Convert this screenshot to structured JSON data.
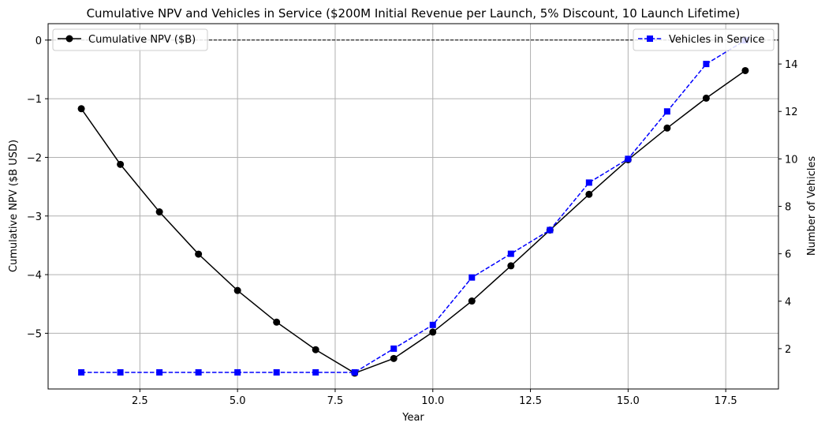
{
  "chart_data": {
    "type": "line",
    "title": "Cumulative NPV and Vehicles in Service ($200M Initial Revenue per Launch, 5% Discount, 10 Launch Lifetime)",
    "xlabel": "Year",
    "ylabel_left": "Cumulative NPV ($B USD)",
    "ylabel_right": "Number of Vehicles",
    "x": [
      1,
      2,
      3,
      4,
      5,
      6,
      7,
      8,
      9,
      10,
      11,
      12,
      13,
      14,
      15,
      16,
      17,
      18
    ],
    "xlim": [
      0.15,
      18.85
    ],
    "xticks": [
      2.5,
      5.0,
      7.5,
      10.0,
      12.5,
      15.0,
      17.5
    ],
    "xtick_labels": [
      "2.5",
      "5.0",
      "7.5",
      "10.0",
      "12.5",
      "15.0",
      "17.5"
    ],
    "ylim_left": [
      -5.95,
      0.28
    ],
    "yticks_left": [
      0,
      -1,
      -2,
      -3,
      -4,
      -5
    ],
    "ytick_labels_left": [
      "0",
      "−1",
      "−2",
      "−3",
      "−4",
      "−5"
    ],
    "ylim_right": [
      0.3,
      15.7
    ],
    "yticks_right": [
      2,
      4,
      6,
      8,
      10,
      12,
      14
    ],
    "ytick_labels_right": [
      "2",
      "4",
      "6",
      "8",
      "10",
      "12",
      "14"
    ],
    "grid": true,
    "reference_line": {
      "y": 0,
      "axis": "left",
      "color": "#000000",
      "style": "dashed"
    },
    "series": [
      {
        "name": "Cumulative NPV ($B)",
        "axis": "left",
        "color": "#000000",
        "marker": "circle",
        "line_style": "solid",
        "values": [
          -1.17,
          -2.12,
          -2.93,
          -3.65,
          -4.27,
          -4.81,
          -5.28,
          -5.68,
          -5.43,
          -4.98,
          -4.45,
          -3.85,
          -3.24,
          -2.63,
          -2.04,
          -1.5,
          -0.99,
          -0.52
        ]
      },
      {
        "name": "Vehicles in Service",
        "axis": "right",
        "color": "#0000ff",
        "marker": "square",
        "line_style": "dashed",
        "values": [
          1,
          1,
          1,
          1,
          1,
          1,
          1,
          1,
          2,
          3,
          5,
          6,
          7,
          9,
          10,
          12,
          14,
          15
        ]
      }
    ],
    "legends": [
      {
        "series": 0,
        "placement": "upper-left"
      },
      {
        "series": 1,
        "placement": "upper-right"
      }
    ]
  }
}
